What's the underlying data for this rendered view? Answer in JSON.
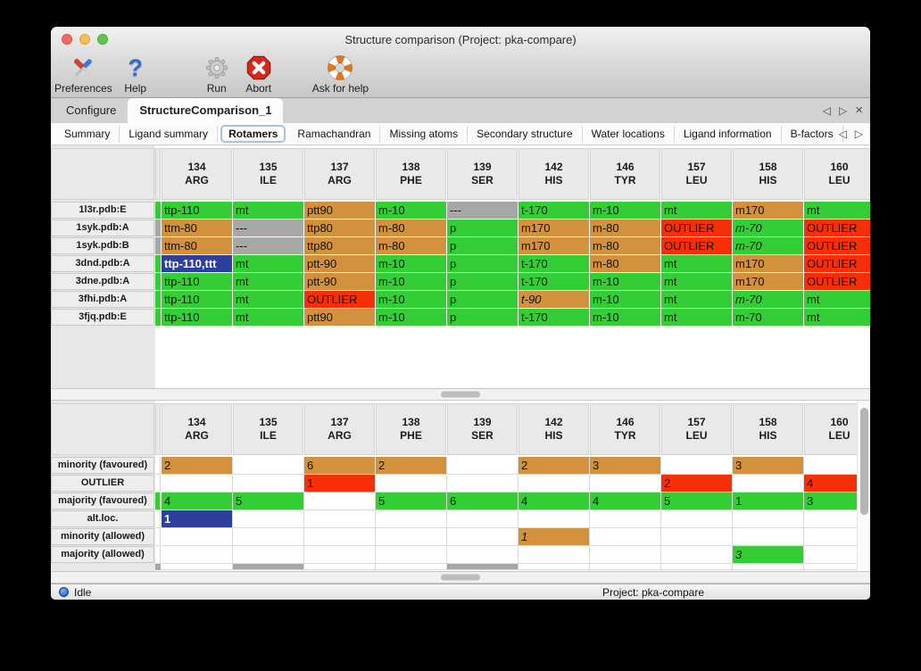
{
  "window": {
    "title": "Structure comparison (Project: pka-compare)"
  },
  "icons": {
    "tab_prev": "◁",
    "tab_next": "▷",
    "tab_close": "×"
  },
  "toolbar": {
    "items": [
      {
        "label": "Preferences"
      },
      {
        "label": "Help"
      },
      {
        "label": "Run"
      },
      {
        "label": "Abort"
      },
      {
        "label": "Ask for help"
      }
    ]
  },
  "tabs": {
    "items": [
      {
        "label": "Configure",
        "active": false
      },
      {
        "label": "StructureComparison_1",
        "active": true
      }
    ]
  },
  "subtabs": {
    "items": [
      "Summary",
      "Ligand summary",
      "Rotamers",
      "Ramachandran",
      "Missing atoms",
      "Secondary structure",
      "Water locations",
      "Ligand information",
      "B-factors"
    ],
    "active": "Rotamers"
  },
  "palette": {
    "green": "#35cd35",
    "gold": "#d2913d",
    "red": "#f53009",
    "gray": "#a7a7a7",
    "blue": "#2f3f9e",
    "none": "#ffffff"
  },
  "columns": [
    {
      "num": "134",
      "res": "ARG"
    },
    {
      "num": "135",
      "res": "ILE"
    },
    {
      "num": "137",
      "res": "ARG"
    },
    {
      "num": "138",
      "res": "PHE"
    },
    {
      "num": "139",
      "res": "SER"
    },
    {
      "num": "142",
      "res": "HIS"
    },
    {
      "num": "146",
      "res": "TYR"
    },
    {
      "num": "157",
      "res": "LEU"
    },
    {
      "num": "158",
      "res": "HIS"
    },
    {
      "num": "160",
      "res": "LEU"
    }
  ],
  "table1": {
    "rows": [
      {
        "label": "1l3r.pdb:E",
        "strip": "green",
        "cells": [
          {
            "t": "ttp-110",
            "c": "green"
          },
          {
            "t": "mt",
            "c": "green"
          },
          {
            "t": "ptt90",
            "c": "gold"
          },
          {
            "t": "m-10",
            "c": "green"
          },
          {
            "t": "---",
            "c": "gray"
          },
          {
            "t": "t-170",
            "c": "green"
          },
          {
            "t": "m-10",
            "c": "green"
          },
          {
            "t": "mt",
            "c": "green"
          },
          {
            "t": "m170",
            "c": "gold"
          },
          {
            "t": "mt",
            "c": "green"
          }
        ]
      },
      {
        "label": "1syk.pdb:A",
        "strip": "gray",
        "cells": [
          {
            "t": "ttm-80",
            "c": "gold"
          },
          {
            "t": "---",
            "c": "gray"
          },
          {
            "t": "ttp80",
            "c": "gold"
          },
          {
            "t": "m-80",
            "c": "gold"
          },
          {
            "t": "p",
            "c": "green"
          },
          {
            "t": "m170",
            "c": "gold"
          },
          {
            "t": "m-80",
            "c": "gold"
          },
          {
            "t": "OUTLIER",
            "c": "red"
          },
          {
            "t": "m-70",
            "c": "green",
            "i": true
          },
          {
            "t": "OUTLIER",
            "c": "red"
          }
        ]
      },
      {
        "label": "1syk.pdb:B",
        "strip": "gray",
        "cells": [
          {
            "t": "ttm-80",
            "c": "gold"
          },
          {
            "t": "---",
            "c": "gray"
          },
          {
            "t": "ttp80",
            "c": "gold"
          },
          {
            "t": "m-80",
            "c": "gold"
          },
          {
            "t": "p",
            "c": "green"
          },
          {
            "t": "m170",
            "c": "gold"
          },
          {
            "t": "m-80",
            "c": "gold"
          },
          {
            "t": "OUTLIER",
            "c": "red"
          },
          {
            "t": "m-70",
            "c": "green",
            "i": true
          },
          {
            "t": "OUTLIER",
            "c": "red"
          }
        ]
      },
      {
        "label": "3dnd.pdb:A",
        "strip": "green",
        "cells": [
          {
            "t": "ttp-110,ttt",
            "c": "blue"
          },
          {
            "t": "mt",
            "c": "green"
          },
          {
            "t": "ptt-90",
            "c": "gold"
          },
          {
            "t": "m-10",
            "c": "green"
          },
          {
            "t": "p",
            "c": "green"
          },
          {
            "t": "t-170",
            "c": "green"
          },
          {
            "t": "m-80",
            "c": "gold"
          },
          {
            "t": "mt",
            "c": "green"
          },
          {
            "t": "m170",
            "c": "gold"
          },
          {
            "t": "OUTLIER",
            "c": "red"
          }
        ]
      },
      {
        "label": "3dne.pdb:A",
        "strip": "green",
        "cells": [
          {
            "t": "ttp-110",
            "c": "green"
          },
          {
            "t": "mt",
            "c": "green"
          },
          {
            "t": "ptt-90",
            "c": "gold"
          },
          {
            "t": "m-10",
            "c": "green"
          },
          {
            "t": "p",
            "c": "green"
          },
          {
            "t": "t-170",
            "c": "green"
          },
          {
            "t": "m-10",
            "c": "green"
          },
          {
            "t": "mt",
            "c": "green"
          },
          {
            "t": "m170",
            "c": "gold"
          },
          {
            "t": "OUTLIER",
            "c": "red"
          }
        ]
      },
      {
        "label": "3fhi.pdb:A",
        "strip": "green",
        "cells": [
          {
            "t": "ttp-110",
            "c": "green"
          },
          {
            "t": "mt",
            "c": "green"
          },
          {
            "t": "OUTLIER",
            "c": "red"
          },
          {
            "t": "m-10",
            "c": "green"
          },
          {
            "t": "p",
            "c": "green"
          },
          {
            "t": "t-90",
            "c": "gold",
            "i": true
          },
          {
            "t": "m-10",
            "c": "green"
          },
          {
            "t": "mt",
            "c": "green"
          },
          {
            "t": "m-70",
            "c": "green",
            "i": true
          },
          {
            "t": "mt",
            "c": "green"
          }
        ]
      },
      {
        "label": "3fjq.pdb:E",
        "strip": "green",
        "cells": [
          {
            "t": "ttp-110",
            "c": "green"
          },
          {
            "t": "mt",
            "c": "green"
          },
          {
            "t": "ptt90",
            "c": "gold"
          },
          {
            "t": "m-10",
            "c": "green"
          },
          {
            "t": "p",
            "c": "green"
          },
          {
            "t": "t-170",
            "c": "green"
          },
          {
            "t": "m-10",
            "c": "green"
          },
          {
            "t": "mt",
            "c": "green"
          },
          {
            "t": "m-70",
            "c": "green"
          },
          {
            "t": "mt",
            "c": "green"
          }
        ]
      }
    ]
  },
  "table2": {
    "rows": [
      {
        "label": "minority (favoured)",
        "strip": "none",
        "cells": [
          {
            "t": "2",
            "c": "gold"
          },
          {
            "t": "",
            "c": "none"
          },
          {
            "t": "6",
            "c": "gold"
          },
          {
            "t": "2",
            "c": "gold"
          },
          {
            "t": "",
            "c": "none"
          },
          {
            "t": "2",
            "c": "gold"
          },
          {
            "t": "3",
            "c": "gold"
          },
          {
            "t": "",
            "c": "none"
          },
          {
            "t": "3",
            "c": "gold"
          },
          {
            "t": "",
            "c": "none"
          }
        ]
      },
      {
        "label": "OUTLIER",
        "strip": "none",
        "cells": [
          {
            "t": "",
            "c": "none"
          },
          {
            "t": "",
            "c": "none"
          },
          {
            "t": "1",
            "c": "red"
          },
          {
            "t": "",
            "c": "none"
          },
          {
            "t": "",
            "c": "none"
          },
          {
            "t": "",
            "c": "none"
          },
          {
            "t": "",
            "c": "none"
          },
          {
            "t": "2",
            "c": "red"
          },
          {
            "t": "",
            "c": "none"
          },
          {
            "t": "4",
            "c": "red"
          }
        ]
      },
      {
        "label": "majority (favoured)",
        "strip": "green",
        "cells": [
          {
            "t": "4",
            "c": "green"
          },
          {
            "t": "5",
            "c": "green"
          },
          {
            "t": "",
            "c": "none"
          },
          {
            "t": "5",
            "c": "green"
          },
          {
            "t": "6",
            "c": "green"
          },
          {
            "t": "4",
            "c": "green"
          },
          {
            "t": "4",
            "c": "green"
          },
          {
            "t": "5",
            "c": "green"
          },
          {
            "t": "1",
            "c": "green"
          },
          {
            "t": "3",
            "c": "green"
          }
        ]
      },
      {
        "label": "alt.loc.",
        "strip": "none",
        "cells": [
          {
            "t": "1",
            "c": "blue"
          },
          {
            "t": "",
            "c": "none"
          },
          {
            "t": "",
            "c": "none"
          },
          {
            "t": "",
            "c": "none"
          },
          {
            "t": "",
            "c": "none"
          },
          {
            "t": "",
            "c": "none"
          },
          {
            "t": "",
            "c": "none"
          },
          {
            "t": "",
            "c": "none"
          },
          {
            "t": "",
            "c": "none"
          },
          {
            "t": "",
            "c": "none"
          }
        ]
      },
      {
        "label": "minority (allowed)",
        "strip": "none",
        "cells": [
          {
            "t": "",
            "c": "none"
          },
          {
            "t": "",
            "c": "none"
          },
          {
            "t": "",
            "c": "none"
          },
          {
            "t": "",
            "c": "none"
          },
          {
            "t": "",
            "c": "none"
          },
          {
            "t": "1",
            "c": "gold",
            "i": true
          },
          {
            "t": "",
            "c": "none"
          },
          {
            "t": "",
            "c": "none"
          },
          {
            "t": "",
            "c": "none"
          },
          {
            "t": "",
            "c": "none"
          }
        ]
      },
      {
        "label": "majority (allowed)",
        "strip": "none",
        "cells": [
          {
            "t": "",
            "c": "none"
          },
          {
            "t": "",
            "c": "none"
          },
          {
            "t": "",
            "c": "none"
          },
          {
            "t": "",
            "c": "none"
          },
          {
            "t": "",
            "c": "none"
          },
          {
            "t": "",
            "c": "none"
          },
          {
            "t": "",
            "c": "none"
          },
          {
            "t": "",
            "c": "none"
          },
          {
            "t": "3",
            "c": "green",
            "i": true
          },
          {
            "t": "",
            "c": "none"
          }
        ]
      }
    ],
    "partial_row": {
      "strip": true,
      "cols": [
        false,
        true,
        false,
        false,
        true,
        false,
        false,
        false,
        false,
        false
      ]
    }
  },
  "statusbar": {
    "status": "Idle",
    "project": "Project: pka-compare"
  }
}
